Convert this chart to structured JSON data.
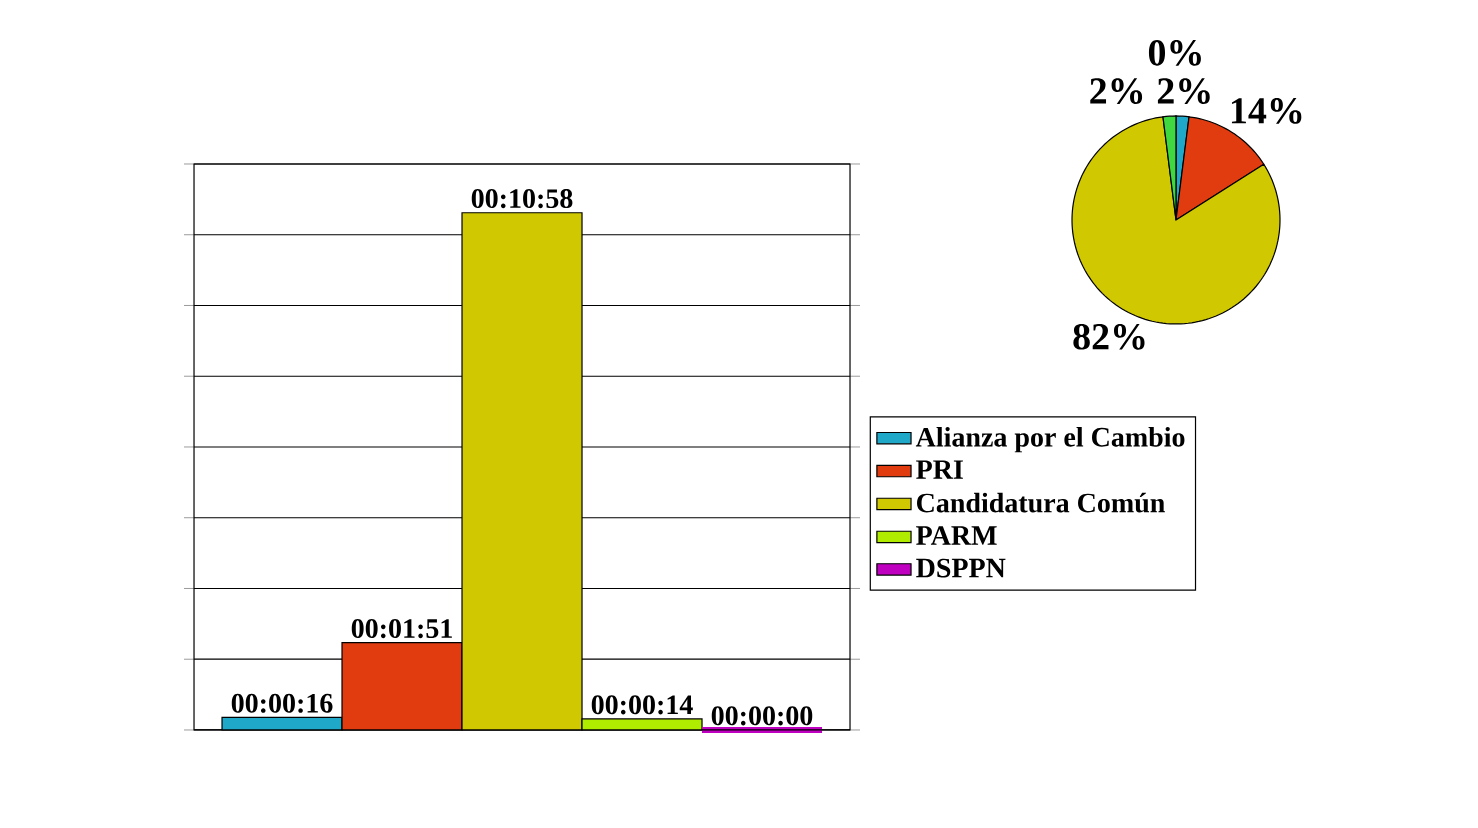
{
  "chart_data": [
    {
      "type": "bar",
      "categories": [
        null
      ],
      "series": [
        {
          "name": "Alianza por el Cambio",
          "color": "#20a8c8",
          "values": [
            16
          ],
          "value_labels": [
            "00:00:16"
          ]
        },
        {
          "name": "PRI",
          "color": "#e03c10",
          "values": [
            111
          ],
          "value_labels": [
            "00:01:51"
          ]
        },
        {
          "name": "Candidatura Común",
          "color": "#d0c800",
          "values": [
            658
          ],
          "value_labels": [
            "00:10:58"
          ]
        },
        {
          "name": "PARM",
          "color": "#b0ec00",
          "values": [
            14
          ],
          "value_labels": [
            "00:00:14"
          ]
        },
        {
          "name": "DSPPN",
          "color": "#c000c0",
          "values": [
            0
          ],
          "value_labels": [
            "00:00:00"
          ]
        }
      ],
      "ylim": [
        0,
        720
      ],
      "yticks": [
        {
          "value": 0,
          "label": null
        },
        {
          "value": 90,
          "label": null
        },
        {
          "value": 180,
          "label": null
        },
        {
          "value": 270,
          "label": null
        },
        {
          "value": 360,
          "label": null
        },
        {
          "value": 450,
          "label": null
        },
        {
          "value": 540,
          "label": null
        },
        {
          "value": 630,
          "label": null
        },
        {
          "value": 720,
          "label": null
        }
      ],
      "grid": "y",
      "legend": "right"
    },
    {
      "type": "pie",
      "categories": [
        null,
        null,
        null,
        null,
        null
      ],
      "values": [
        2,
        14,
        82,
        2,
        0
      ],
      "colors": [
        "#20a8c8",
        "#e03c10",
        "#d0c800",
        "#40d840",
        "#c000c0"
      ],
      "value_labels": [
        "2%",
        "14%",
        "82%",
        "2%",
        "0%"
      ]
    }
  ]
}
